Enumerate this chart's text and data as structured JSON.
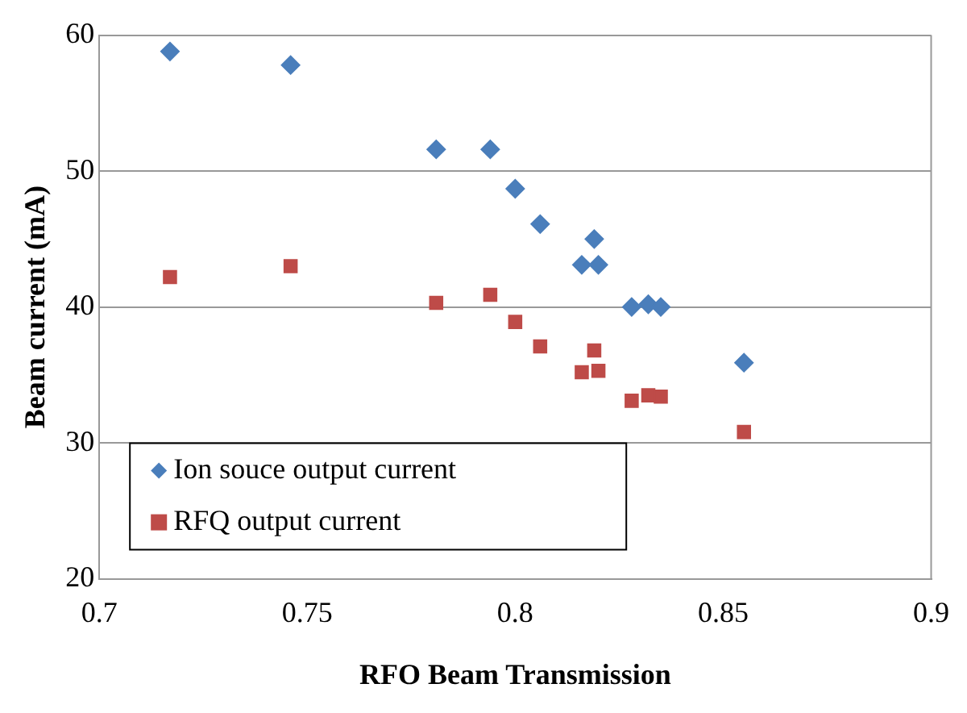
{
  "chart_data": {
    "type": "scatter",
    "xlabel": "RFO Beam Transmission",
    "ylabel": "Beam current (mA)",
    "xlim": [
      0.7,
      0.9
    ],
    "xticks": [
      0.7,
      0.75,
      0.8,
      0.85,
      0.9
    ],
    "ylim": [
      20,
      60
    ],
    "yticks": [
      20,
      30,
      40,
      50,
      60
    ],
    "grid": "y",
    "legend": "bottom left",
    "series": [
      {
        "name": "Ion souce output current",
        "color": "#4a7ebb",
        "marker": "diamond",
        "x": [
          0.717,
          0.746,
          0.781,
          0.794,
          0.8,
          0.806,
          0.819,
          0.816,
          0.82,
          0.828,
          0.832,
          0.835,
          0.855
        ],
        "values": [
          58.8,
          57.8,
          51.6,
          51.6,
          48.7,
          46.1,
          45.0,
          43.1,
          43.1,
          40.0,
          40.2,
          40.0,
          35.9
        ]
      },
      {
        "name": "RFQ output current",
        "color": "#be4b48",
        "marker": "square",
        "x": [
          0.717,
          0.746,
          0.781,
          0.794,
          0.8,
          0.806,
          0.819,
          0.816,
          0.82,
          0.828,
          0.832,
          0.835,
          0.855
        ],
        "values": [
          42.2,
          43.0,
          40.3,
          40.9,
          38.9,
          37.1,
          36.8,
          35.2,
          35.3,
          33.1,
          33.5,
          33.4,
          30.8
        ]
      }
    ]
  }
}
